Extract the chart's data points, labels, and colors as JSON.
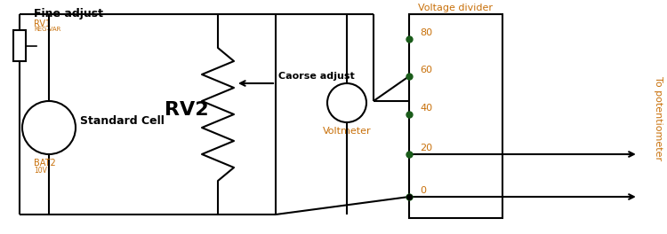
{
  "bg_color": "#ffffff",
  "lc": "#000000",
  "oc": "#c8700a",
  "gc": "#1a5c1a",
  "label_fine_adjust": "Fine adjust",
  "label_rv1": "RV1",
  "label_rv1_sub": "REG-VAR",
  "label_rv2": "RV2",
  "label_coarse": "Caorse adjust",
  "label_voltmeter": "Voltmeter",
  "label_std_cell": "Standard Cell",
  "label_bat2": "BAT2",
  "label_bat2_sub": "10V",
  "label_vd": "Voltage divider",
  "label_to_pot": "To potentiometer",
  "vd_labels": [
    "80",
    "60",
    "40",
    "20",
    "0"
  ],
  "figsize": [
    7.5,
    2.64
  ],
  "dpi": 100
}
